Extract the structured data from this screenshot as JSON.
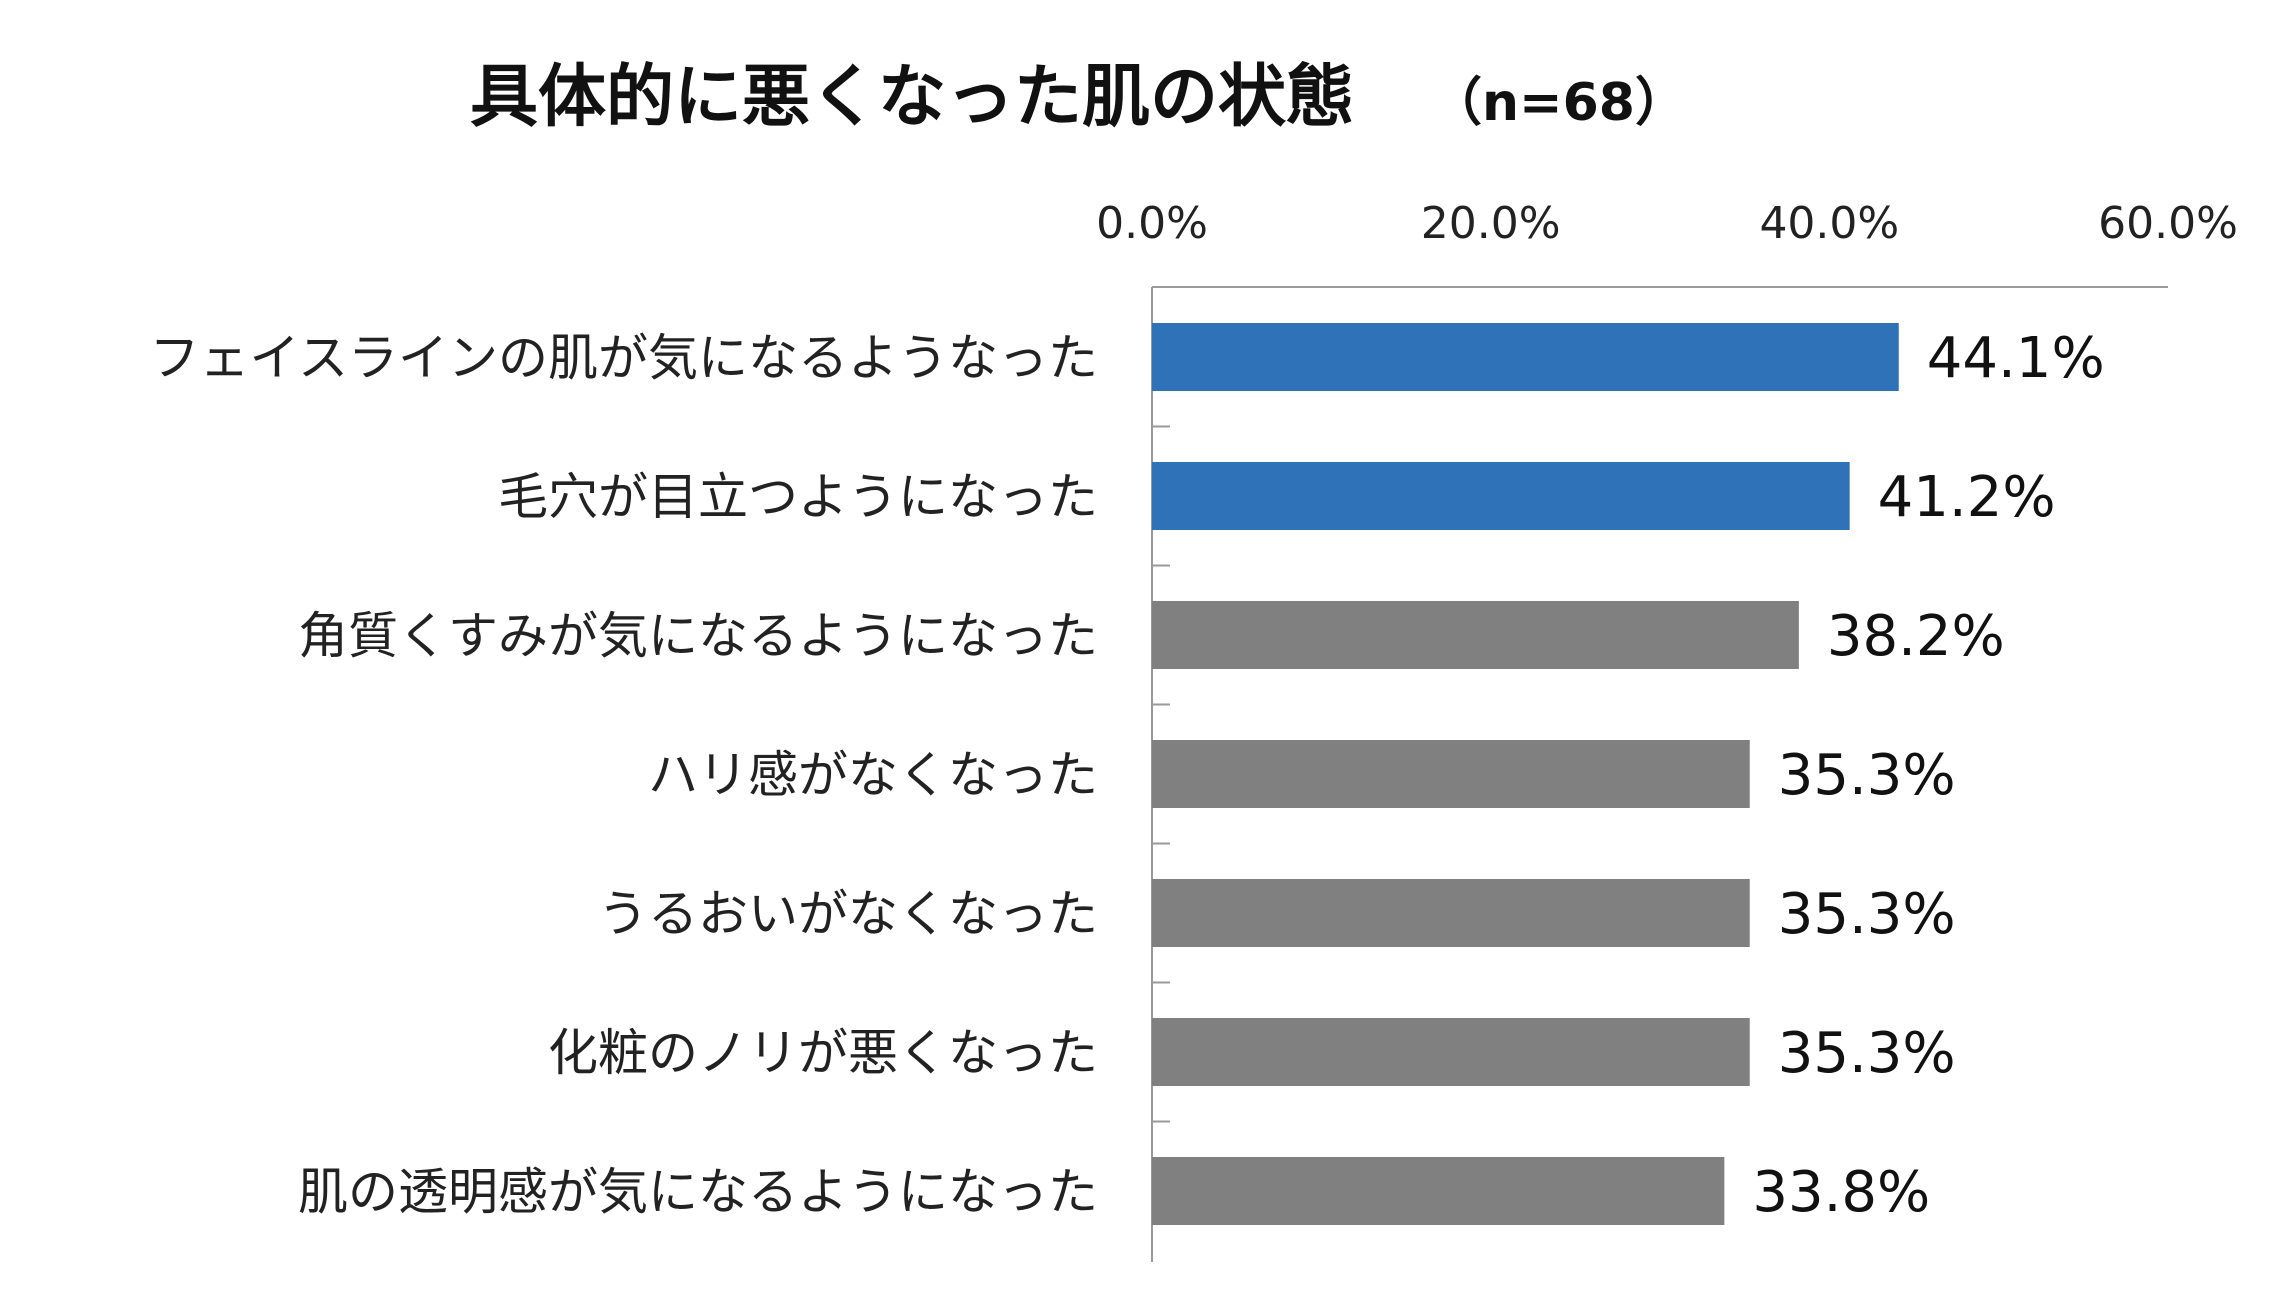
{
  "chart_data": {
    "type": "bar",
    "orientation": "horizontal",
    "title": "具体的に悪くなった肌の状態",
    "subtitle": "（n=68）",
    "xlim": [
      0,
      60
    ],
    "ticks": [
      0,
      20,
      40,
      60
    ],
    "tick_labels": [
      "0.0%",
      "20.0%",
      "40.0%",
      "60.0%"
    ],
    "axis_position": "top",
    "grid": false,
    "legend": "none",
    "categories": [
      "フェイスラインの肌が気になるようなった",
      "毛穴が目立つようになった",
      "角質くすみが気になるようになった",
      "ハリ感がなくなった",
      "うるおいがなくなった",
      "化粧のノリが悪くなった",
      "肌の透明感が気になるようになった"
    ],
    "values": [
      44.1,
      41.2,
      38.2,
      35.3,
      35.3,
      35.3,
      33.8
    ],
    "value_labels": [
      "44.1%",
      "41.2%",
      "38.2%",
      "35.3%",
      "35.3%",
      "35.3%",
      "33.8%"
    ],
    "highlight_count": 2,
    "colors": {
      "highlight": "#2f72b8",
      "default": "#808080",
      "axis": "#9a9a9a"
    }
  }
}
